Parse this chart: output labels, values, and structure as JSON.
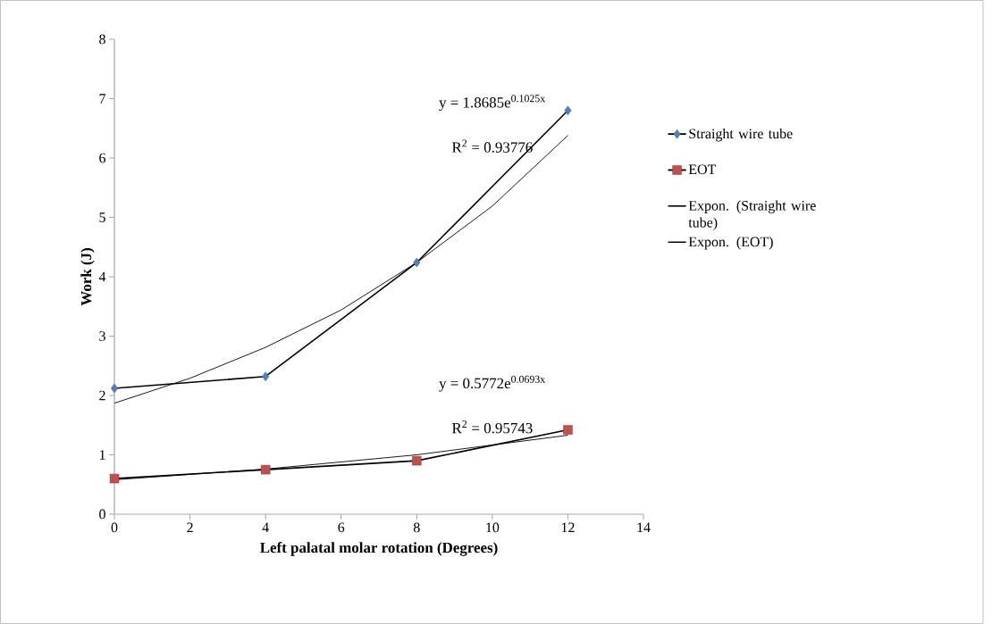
{
  "chart_data": {
    "type": "line",
    "xlabel": "Left palatal molar rotation (Degrees)",
    "ylabel": "Work (J)",
    "xlim": [
      0,
      14
    ],
    "xticks": [
      0,
      2,
      4,
      6,
      8,
      10,
      12,
      14
    ],
    "ylim": [
      0,
      8
    ],
    "yticks": [
      0,
      1,
      2,
      3,
      4,
      5,
      6,
      7,
      8
    ],
    "grid": false,
    "legend": "right",
    "series": [
      {
        "name": "Straight wire tube",
        "color": "#4f81bd",
        "marker": "diamond",
        "x": [
          0,
          4,
          8,
          12
        ],
        "values": [
          2.12,
          2.32,
          4.24,
          6.8
        ]
      },
      {
        "name": "EOT",
        "color": "#c0504d",
        "marker": "square",
        "x": [
          0,
          4,
          8,
          12
        ],
        "values": [
          0.6,
          0.75,
          0.9,
          1.42
        ]
      },
      {
        "name": "Expon. (Straight wire tube)",
        "color": "#000000",
        "x": [
          0,
          2,
          4,
          6,
          8,
          10,
          12
        ],
        "values": [
          1.87,
          2.29,
          2.81,
          3.44,
          4.24,
          5.19,
          6.38
        ]
      },
      {
        "name": "Expon. (EOT)",
        "color": "#000000",
        "x": [
          0,
          4,
          8,
          12
        ],
        "values": [
          0.58,
          0.76,
          1.0,
          1.33
        ]
      }
    ],
    "annotations": [
      "y = 1.8685e$^{0.1025x}$",
      "R$^{2}$ = 0.93776",
      "y = 0.5772e$^{0.0693x}$",
      "R$^{2}$ = 0.95743"
    ]
  }
}
